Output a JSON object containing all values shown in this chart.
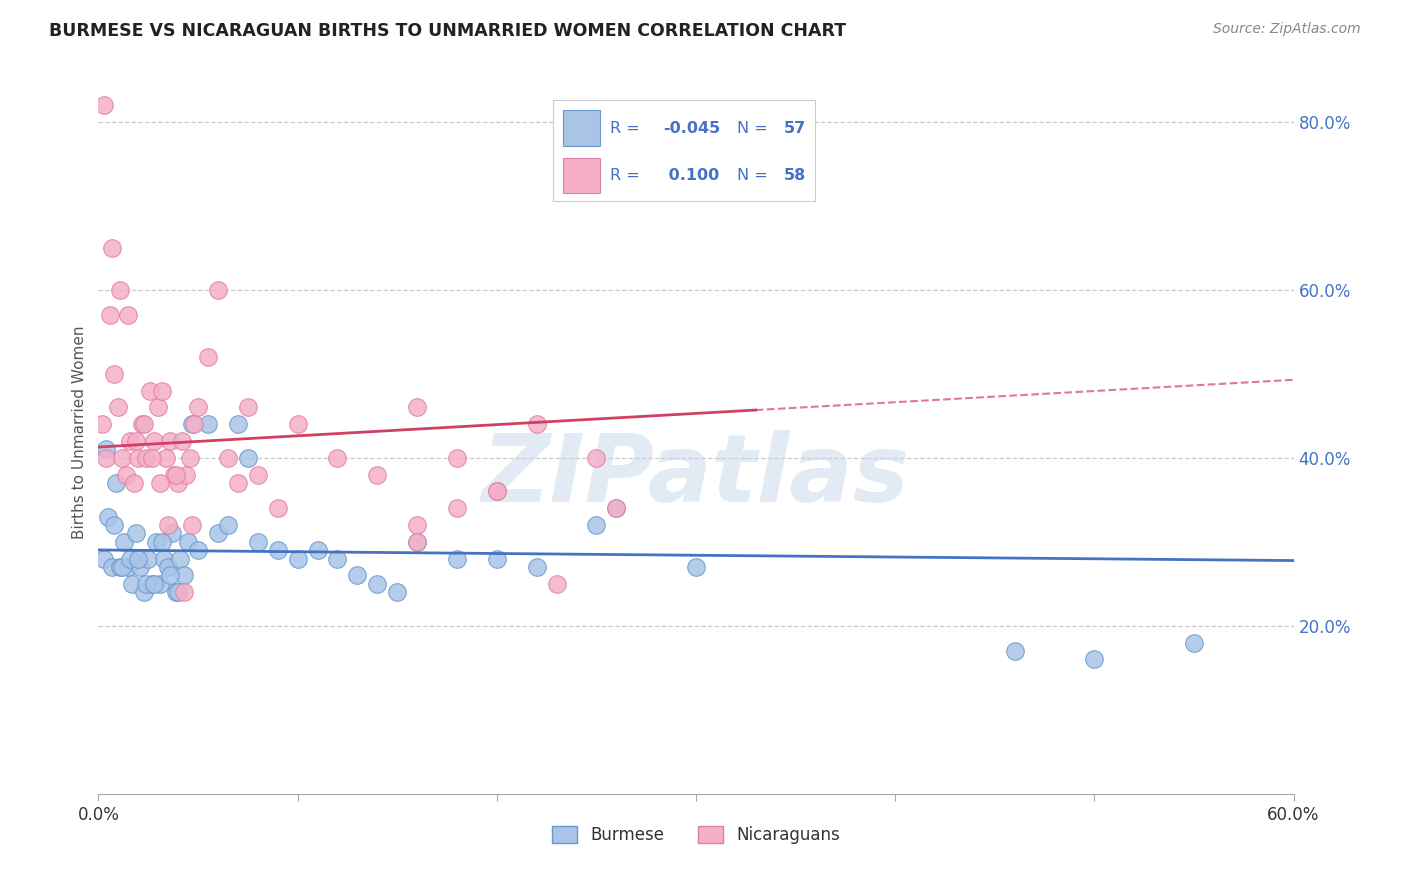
{
  "title": "BURMESE VS NICARAGUAN BIRTHS TO UNMARRIED WOMEN CORRELATION CHART",
  "source": "Source: ZipAtlas.com",
  "ylabel": "Births to Unmarried Women",
  "xlim": [
    0.0,
    0.6
  ],
  "ylim": [
    0.0,
    0.86
  ],
  "xtick_vals": [
    0.0,
    0.1,
    0.2,
    0.3,
    0.4,
    0.5,
    0.6
  ],
  "xtick_labels": [
    "0.0%",
    "",
    "",
    "",
    "",
    "",
    "60.0%"
  ],
  "yticks_right": [
    0.2,
    0.4,
    0.6,
    0.8
  ],
  "yticklabels_right": [
    "20.0%",
    "40.0%",
    "60.0%",
    "80.0%"
  ],
  "burmese_fill": "#aac4e8",
  "nicaraguan_fill": "#f5afc8",
  "burmese_edge": "#6699cc",
  "nicaraguan_edge": "#e080a0",
  "burmese_line_color": "#4472c4",
  "nicaraguan_line_color": "#d04060",
  "legend_text_color": "#4472c4",
  "R_burmese": -0.045,
  "N_burmese": 57,
  "R_nicaraguan": 0.1,
  "N_nicaraguan": 58,
  "watermark": "ZIPatlas",
  "grid_color": "#cccccc",
  "right_tick_color": "#4472c4",
  "burmese_x": [
    0.003,
    0.005,
    0.007,
    0.009,
    0.011,
    0.013,
    0.015,
    0.017,
    0.019,
    0.021,
    0.023,
    0.025,
    0.027,
    0.029,
    0.031,
    0.033,
    0.035,
    0.037,
    0.039,
    0.041,
    0.043,
    0.045,
    0.047,
    0.05,
    0.055,
    0.06,
    0.065,
    0.07,
    0.075,
    0.08,
    0.09,
    0.1,
    0.11,
    0.12,
    0.13,
    0.14,
    0.15,
    0.16,
    0.18,
    0.2,
    0.22,
    0.25,
    0.004,
    0.008,
    0.012,
    0.016,
    0.02,
    0.024,
    0.028,
    0.032,
    0.036,
    0.04,
    0.26,
    0.3,
    0.46,
    0.5,
    0.55
  ],
  "burmese_y": [
    0.28,
    0.33,
    0.27,
    0.37,
    0.27,
    0.3,
    0.27,
    0.25,
    0.31,
    0.27,
    0.24,
    0.28,
    0.25,
    0.3,
    0.25,
    0.28,
    0.27,
    0.31,
    0.24,
    0.28,
    0.26,
    0.3,
    0.44,
    0.29,
    0.44,
    0.31,
    0.32,
    0.44,
    0.4,
    0.3,
    0.29,
    0.28,
    0.29,
    0.28,
    0.26,
    0.25,
    0.24,
    0.3,
    0.28,
    0.28,
    0.27,
    0.32,
    0.41,
    0.32,
    0.27,
    0.28,
    0.28,
    0.25,
    0.25,
    0.3,
    0.26,
    0.24,
    0.34,
    0.27,
    0.17,
    0.16,
    0.18
  ],
  "nicaraguan_x": [
    0.002,
    0.004,
    0.006,
    0.008,
    0.01,
    0.012,
    0.014,
    0.016,
    0.018,
    0.02,
    0.022,
    0.024,
    0.026,
    0.028,
    0.03,
    0.032,
    0.034,
    0.036,
    0.038,
    0.04,
    0.042,
    0.044,
    0.046,
    0.048,
    0.05,
    0.055,
    0.06,
    0.065,
    0.07,
    0.075,
    0.08,
    0.09,
    0.1,
    0.12,
    0.14,
    0.16,
    0.18,
    0.003,
    0.007,
    0.011,
    0.015,
    0.019,
    0.023,
    0.027,
    0.031,
    0.035,
    0.039,
    0.043,
    0.047,
    0.16,
    0.18,
    0.2,
    0.22,
    0.25,
    0.16,
    0.2,
    0.23,
    0.26
  ],
  "nicaraguan_y": [
    0.44,
    0.4,
    0.57,
    0.5,
    0.46,
    0.4,
    0.38,
    0.42,
    0.37,
    0.4,
    0.44,
    0.4,
    0.48,
    0.42,
    0.46,
    0.48,
    0.4,
    0.42,
    0.38,
    0.37,
    0.42,
    0.38,
    0.4,
    0.44,
    0.46,
    0.52,
    0.6,
    0.4,
    0.37,
    0.46,
    0.38,
    0.34,
    0.44,
    0.4,
    0.38,
    0.32,
    0.34,
    0.82,
    0.65,
    0.6,
    0.57,
    0.42,
    0.44,
    0.4,
    0.37,
    0.32,
    0.38,
    0.24,
    0.32,
    0.46,
    0.4,
    0.36,
    0.44,
    0.4,
    0.3,
    0.36,
    0.25,
    0.34
  ]
}
